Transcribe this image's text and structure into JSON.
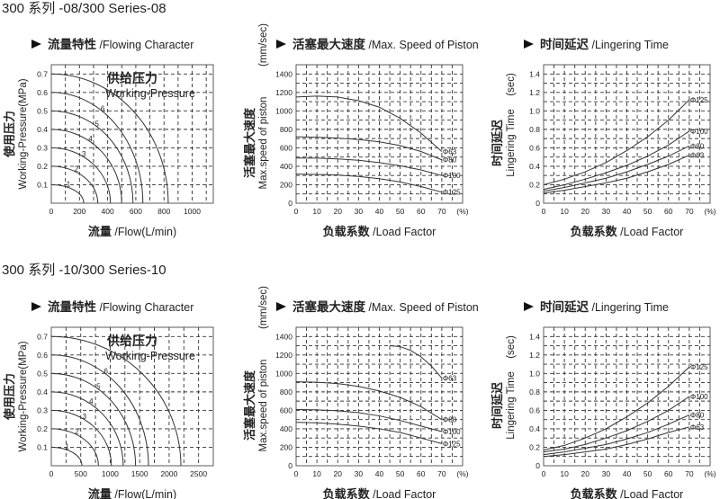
{
  "sections": [
    {
      "title": "300 系列 -08/300 Series-08"
    },
    {
      "title": "300 系列 -10/300 Series-10"
    }
  ],
  "chart_data": [
    {
      "type": "line",
      "title_zh": "流量特性",
      "title_en": "/Flowing Character",
      "xlabel_zh": "流量",
      "xlabel_en": "/Flow(L/min)",
      "ylabel_zh": "使用压力",
      "ylabel_en": "Working-Pressure(MPa)",
      "annotation_zh": "供给压力",
      "annotation_en": "Working-Pressure",
      "x_ticks": [
        "0",
        "200",
        "400",
        "600",
        "800",
        "1000"
      ],
      "y_ticks": [
        "0.1",
        "0.2",
        "0.3",
        "0.4",
        "0.5",
        "0.6",
        "0.7"
      ],
      "xlim": [
        0,
        1150
      ],
      "ylim": [
        0,
        0.75
      ],
      "grid": true,
      "series": [
        {
          "name": "1",
          "pressure": 0.1,
          "max_flow": 230
        },
        {
          "name": "2",
          "pressure": 0.2,
          "max_flow": 330
        },
        {
          "name": "3",
          "pressure": 0.3,
          "max_flow": 420
        },
        {
          "name": "4",
          "pressure": 0.4,
          "max_flow": 500
        },
        {
          "name": "5",
          "pressure": 0.5,
          "max_flow": 580
        },
        {
          "name": "6",
          "pressure": 0.6,
          "max_flow": 650
        },
        {
          "name": "7",
          "pressure": 0.7,
          "max_flow": 830
        }
      ]
    },
    {
      "type": "line",
      "title_zh": "活塞最大速度",
      "title_en": "/Max. Speed of Piston",
      "xlabel_zh": "负载系数",
      "xlabel_en": "/Load Factor",
      "ylabel_zh": "活塞最大速度",
      "ylabel_en": "Max.speed of piston",
      "yunit": "(mm/sec)",
      "x_ticks": [
        "0",
        "10",
        "20",
        "30",
        "40",
        "50",
        "60",
        "70",
        "(%)"
      ],
      "y_ticks": [
        "0",
        "200",
        "400",
        "600",
        "800",
        "1000",
        "1200",
        "1400"
      ],
      "xlim": [
        0,
        80
      ],
      "ylim": [
        0,
        1500
      ],
      "grid": true,
      "series": [
        {
          "name": "Φ63",
          "x": [
            0,
            10,
            20,
            30,
            40,
            50,
            60,
            70
          ],
          "y": [
            1150,
            1160,
            1150,
            1110,
            1040,
            920,
            760,
            560
          ]
        },
        {
          "name": "Φ80",
          "x": [
            0,
            10,
            20,
            30,
            40,
            50,
            60,
            70
          ],
          "y": [
            720,
            715,
            705,
            690,
            665,
            625,
            560,
            470
          ]
        },
        {
          "name": "Φ100",
          "x": [
            0,
            10,
            20,
            30,
            40,
            50,
            60,
            70
          ],
          "y": [
            490,
            488,
            480,
            465,
            440,
            405,
            360,
            300
          ]
        },
        {
          "name": "Φ125",
          "x": [
            0,
            10,
            20,
            30,
            40,
            50,
            60,
            70
          ],
          "y": [
            315,
            312,
            305,
            290,
            265,
            230,
            180,
            120
          ]
        }
      ]
    },
    {
      "type": "line",
      "title_zh": "时间延迟",
      "title_en": "/Lingering Time",
      "xlabel_zh": "负载系数",
      "xlabel_en": "/Load Factor",
      "ylabel_zh": "时间延迟",
      "ylabel_en": "Lingering Time",
      "yunit": "(sec)",
      "x_ticks": [
        "0",
        "10",
        "20",
        "30",
        "40",
        "50",
        "60",
        "70",
        "(%)"
      ],
      "y_ticks": [
        "0",
        "0.2",
        "0.4",
        "0.6",
        "0.8",
        "1.0",
        "1.2",
        "1.4"
      ],
      "xlim": [
        0,
        80
      ],
      "ylim": [
        0,
        1.5
      ],
      "grid": true,
      "series": [
        {
          "name": "Φ125",
          "x": [
            0,
            10,
            20,
            30,
            40,
            50,
            60,
            70
          ],
          "y": [
            0.2,
            0.26,
            0.34,
            0.44,
            0.57,
            0.72,
            0.9,
            1.12
          ]
        },
        {
          "name": "Φ100",
          "x": [
            0,
            10,
            20,
            30,
            40,
            50,
            60,
            70
          ],
          "y": [
            0.15,
            0.2,
            0.26,
            0.33,
            0.41,
            0.51,
            0.63,
            0.78
          ]
        },
        {
          "name": "Φ80",
          "x": [
            0,
            10,
            20,
            30,
            40,
            50,
            60,
            70
          ],
          "y": [
            0.13,
            0.17,
            0.22,
            0.27,
            0.34,
            0.42,
            0.51,
            0.62
          ]
        },
        {
          "name": "Φ63",
          "x": [
            0,
            10,
            20,
            30,
            40,
            50,
            60,
            70
          ],
          "y": [
            0.11,
            0.14,
            0.18,
            0.22,
            0.27,
            0.34,
            0.42,
            0.52
          ]
        }
      ]
    },
    {
      "type": "line",
      "title_zh": "流量特性",
      "title_en": "/Flowing Character",
      "xlabel_zh": "流量",
      "xlabel_en": "/Flow(L/min)",
      "ylabel_zh": "使用压力",
      "ylabel_en": "Working-Pressure(MPa)",
      "annotation_zh": "供给压力",
      "annotation_en": "Working-Pressure",
      "x_ticks": [
        "0",
        "500",
        "1000",
        "1500",
        "2000",
        "2500"
      ],
      "y_ticks": [
        "0.1",
        "0.2",
        "0.3",
        "0.4",
        "0.5",
        "0.6",
        "0.7"
      ],
      "xlim": [
        0,
        2750
      ],
      "ylim": [
        0,
        0.75
      ],
      "grid": true,
      "series": [
        {
          "name": "1",
          "pressure": 0.1,
          "max_flow": 520
        },
        {
          "name": "2",
          "pressure": 0.2,
          "max_flow": 800
        },
        {
          "name": "3",
          "pressure": 0.3,
          "max_flow": 1020
        },
        {
          "name": "4",
          "pressure": 0.4,
          "max_flow": 1220
        },
        {
          "name": "5",
          "pressure": 0.5,
          "max_flow": 1430
        },
        {
          "name": "6",
          "pressure": 0.6,
          "max_flow": 1650
        },
        {
          "name": "7",
          "pressure": 0.7,
          "max_flow": 2200
        }
      ]
    },
    {
      "type": "line",
      "title_zh": "活塞最大速度",
      "title_en": "/Max. Speed of Piston",
      "xlabel_zh": "负载系数",
      "xlabel_en": "/Load Factor",
      "ylabel_zh": "活塞最大速度",
      "ylabel_en": "Max.speed of piston",
      "yunit": "(mm/sec)",
      "x_ticks": [
        "0",
        "10",
        "20",
        "30",
        "40",
        "50",
        "60",
        "70",
        "(%)"
      ],
      "y_ticks": [
        "0",
        "200",
        "400",
        "600",
        "800",
        "1000",
        "1200",
        "1400"
      ],
      "xlim": [
        0,
        80
      ],
      "ylim": [
        0,
        1500
      ],
      "grid": true,
      "series": [
        {
          "name": "Φ63",
          "x": [
            45,
            50,
            55,
            60,
            65,
            70
          ],
          "y": [
            1300,
            1290,
            1250,
            1180,
            1080,
            950
          ]
        },
        {
          "name": "Φ80",
          "x": [
            0,
            10,
            20,
            30,
            40,
            50,
            60,
            70
          ],
          "y": [
            910,
            905,
            890,
            860,
            810,
            740,
            640,
            500
          ]
        },
        {
          "name": "Φ100",
          "x": [
            0,
            10,
            20,
            30,
            40,
            50,
            60,
            70
          ],
          "y": [
            610,
            605,
            595,
            575,
            540,
            490,
            430,
            370
          ]
        },
        {
          "name": "Φ125",
          "x": [
            0,
            10,
            20,
            30,
            40,
            50,
            60,
            70
          ],
          "y": [
            470,
            465,
            450,
            430,
            400,
            360,
            300,
            240
          ]
        }
      ]
    },
    {
      "type": "line",
      "title_zh": "时间延迟",
      "title_en": "/Lingering Time",
      "xlabel_zh": "负载系数",
      "xlabel_en": "/Load Factor",
      "ylabel_zh": "时间延迟",
      "ylabel_en": "Lingering Time",
      "yunit": "(sec)",
      "x_ticks": [
        "0",
        "10",
        "20",
        "30",
        "40",
        "50",
        "60",
        "70",
        "(%)"
      ],
      "y_ticks": [
        "0",
        "0.2",
        "0.4",
        "0.6",
        "0.8",
        "1.0",
        "1.2",
        "1.4"
      ],
      "xlim": [
        0,
        80
      ],
      "ylim": [
        0,
        1.5
      ],
      "grid": true,
      "series": [
        {
          "name": "Φ125",
          "x": [
            0,
            10,
            20,
            30,
            40,
            50,
            60,
            70
          ],
          "y": [
            0.17,
            0.22,
            0.3,
            0.4,
            0.53,
            0.68,
            0.86,
            1.07
          ]
        },
        {
          "name": "Φ100",
          "x": [
            0,
            10,
            20,
            30,
            40,
            50,
            60,
            70
          ],
          "y": [
            0.15,
            0.18,
            0.23,
            0.3,
            0.38,
            0.48,
            0.6,
            0.75
          ]
        },
        {
          "name": "Φ80",
          "x": [
            0,
            10,
            20,
            30,
            40,
            50,
            60,
            70
          ],
          "y": [
            0.12,
            0.15,
            0.19,
            0.23,
            0.29,
            0.36,
            0.45,
            0.55
          ]
        },
        {
          "name": "Φ63",
          "x": [
            0,
            10,
            20,
            30,
            40,
            50,
            60,
            70
          ],
          "y": [
            0.1,
            0.12,
            0.15,
            0.18,
            0.23,
            0.29,
            0.36,
            0.42
          ]
        }
      ]
    }
  ]
}
